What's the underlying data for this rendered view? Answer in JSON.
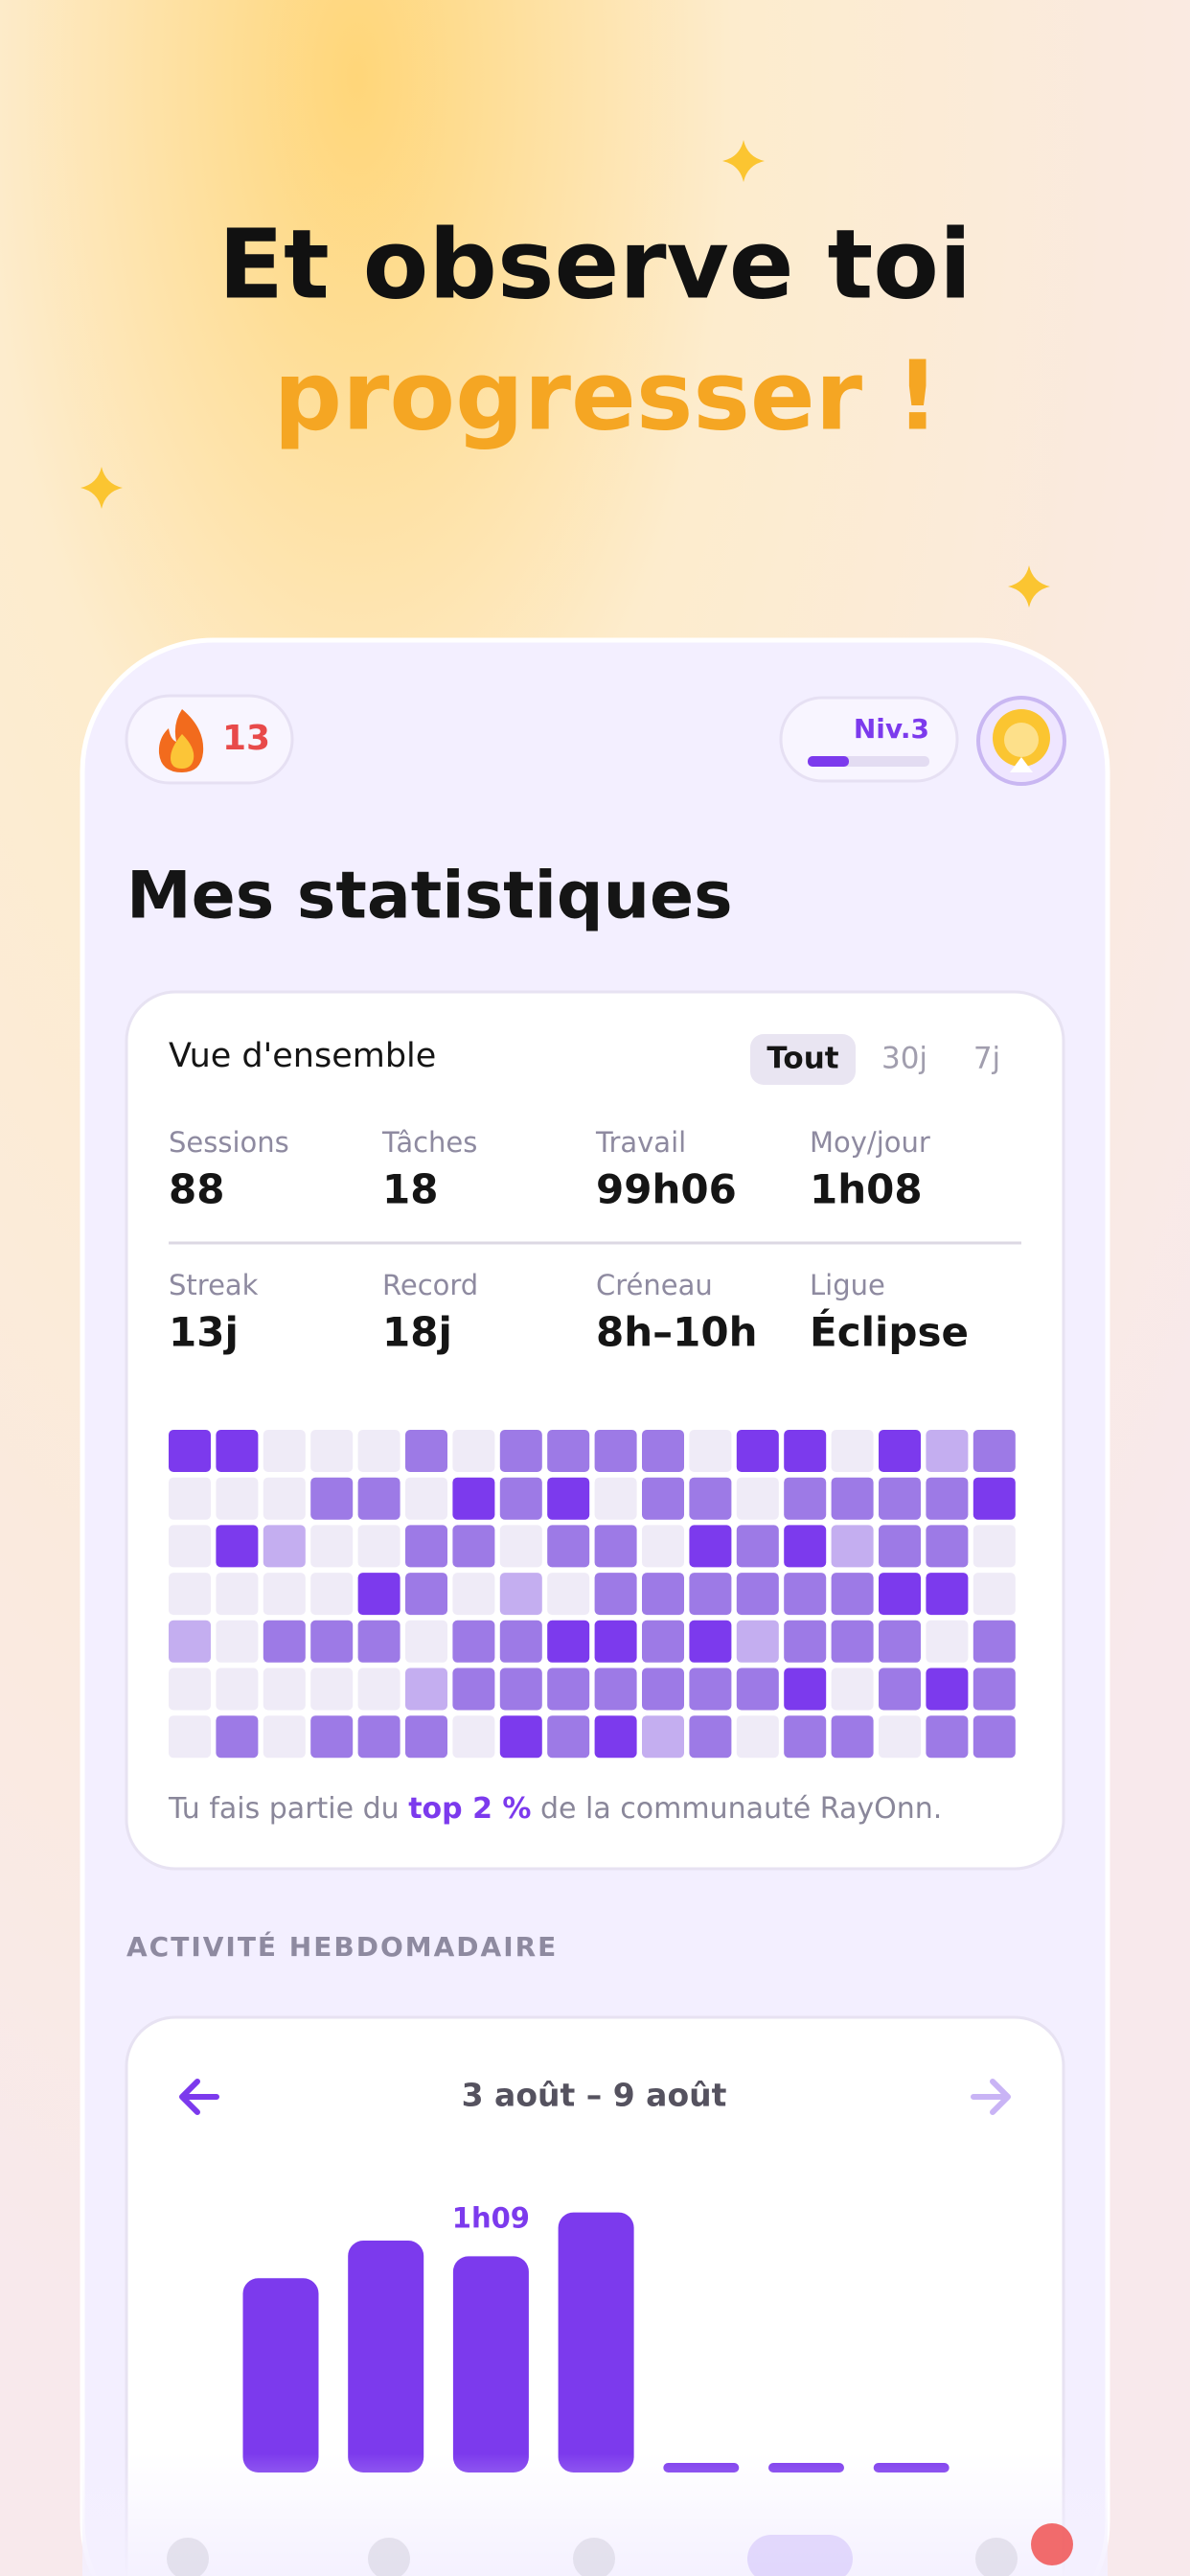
{
  "headline": {
    "line1": "Et observe toi",
    "line2": "progresser !"
  },
  "header": {
    "streak": "13",
    "level": "Niv.3"
  },
  "title": "Mes statistiques",
  "overview": {
    "title": "Vue d'ensemble",
    "tabs": [
      "Tout",
      "30j",
      "7j"
    ],
    "stats": [
      {
        "label": "Sessions",
        "value": "88"
      },
      {
        "label": "Tâches",
        "value": "18"
      },
      {
        "label": "Travail",
        "value": "99h06"
      },
      {
        "label": "Moy/jour",
        "value": "1h08"
      },
      {
        "label": "Streak",
        "value": "13j"
      },
      {
        "label": "Record",
        "value": "18j"
      },
      {
        "label": "Créneau",
        "value": "8h–10h"
      },
      {
        "label": "Ligue",
        "value": "Éclipse"
      }
    ],
    "heatmap": {
      "rows": [
        [
          3,
          3,
          0,
          0,
          0,
          2,
          0,
          2,
          2,
          2,
          2,
          0,
          3,
          3,
          0,
          3,
          1,
          2
        ],
        [
          0,
          0,
          0,
          2,
          2,
          0,
          3,
          2,
          3,
          0,
          2,
          2,
          0,
          2,
          2,
          2,
          2,
          3
        ],
        [
          0,
          3,
          1,
          0,
          0,
          2,
          2,
          0,
          2,
          2,
          0,
          3,
          2,
          3,
          1,
          2,
          2,
          0
        ],
        [
          0,
          0,
          0,
          0,
          3,
          2,
          0,
          1,
          0,
          2,
          2,
          2,
          2,
          2,
          2,
          3,
          3,
          0
        ],
        [
          1,
          0,
          2,
          2,
          2,
          0,
          2,
          2,
          3,
          3,
          2,
          3,
          1,
          2,
          2,
          2,
          0,
          2
        ],
        [
          0,
          0,
          0,
          0,
          0,
          1,
          2,
          2,
          2,
          2,
          2,
          2,
          2,
          3,
          0,
          2,
          3,
          2
        ],
        [
          0,
          2,
          0,
          2,
          2,
          2,
          0,
          3,
          2,
          3,
          1,
          2,
          0,
          2,
          2,
          0,
          2,
          2
        ]
      ],
      "colors": [
        "#efebf7",
        "#c4aef0",
        "#9d7ae6",
        "#7c3aed"
      ]
    },
    "footer": {
      "before": "Tu fais partie du ",
      "highlight": "top 2 %",
      "after": " de la communauté RayOnn."
    }
  },
  "weekly": {
    "section": "ACTIVITÉ HEBDOMADAIRE",
    "range": "3 août – 9 août",
    "values": [
      62,
      74,
      69,
      83,
      0,
      0,
      0
    ],
    "value_labels": [
      null,
      null,
      "1h09",
      null,
      null,
      null,
      null
    ],
    "color": "#7c3aed"
  }
}
